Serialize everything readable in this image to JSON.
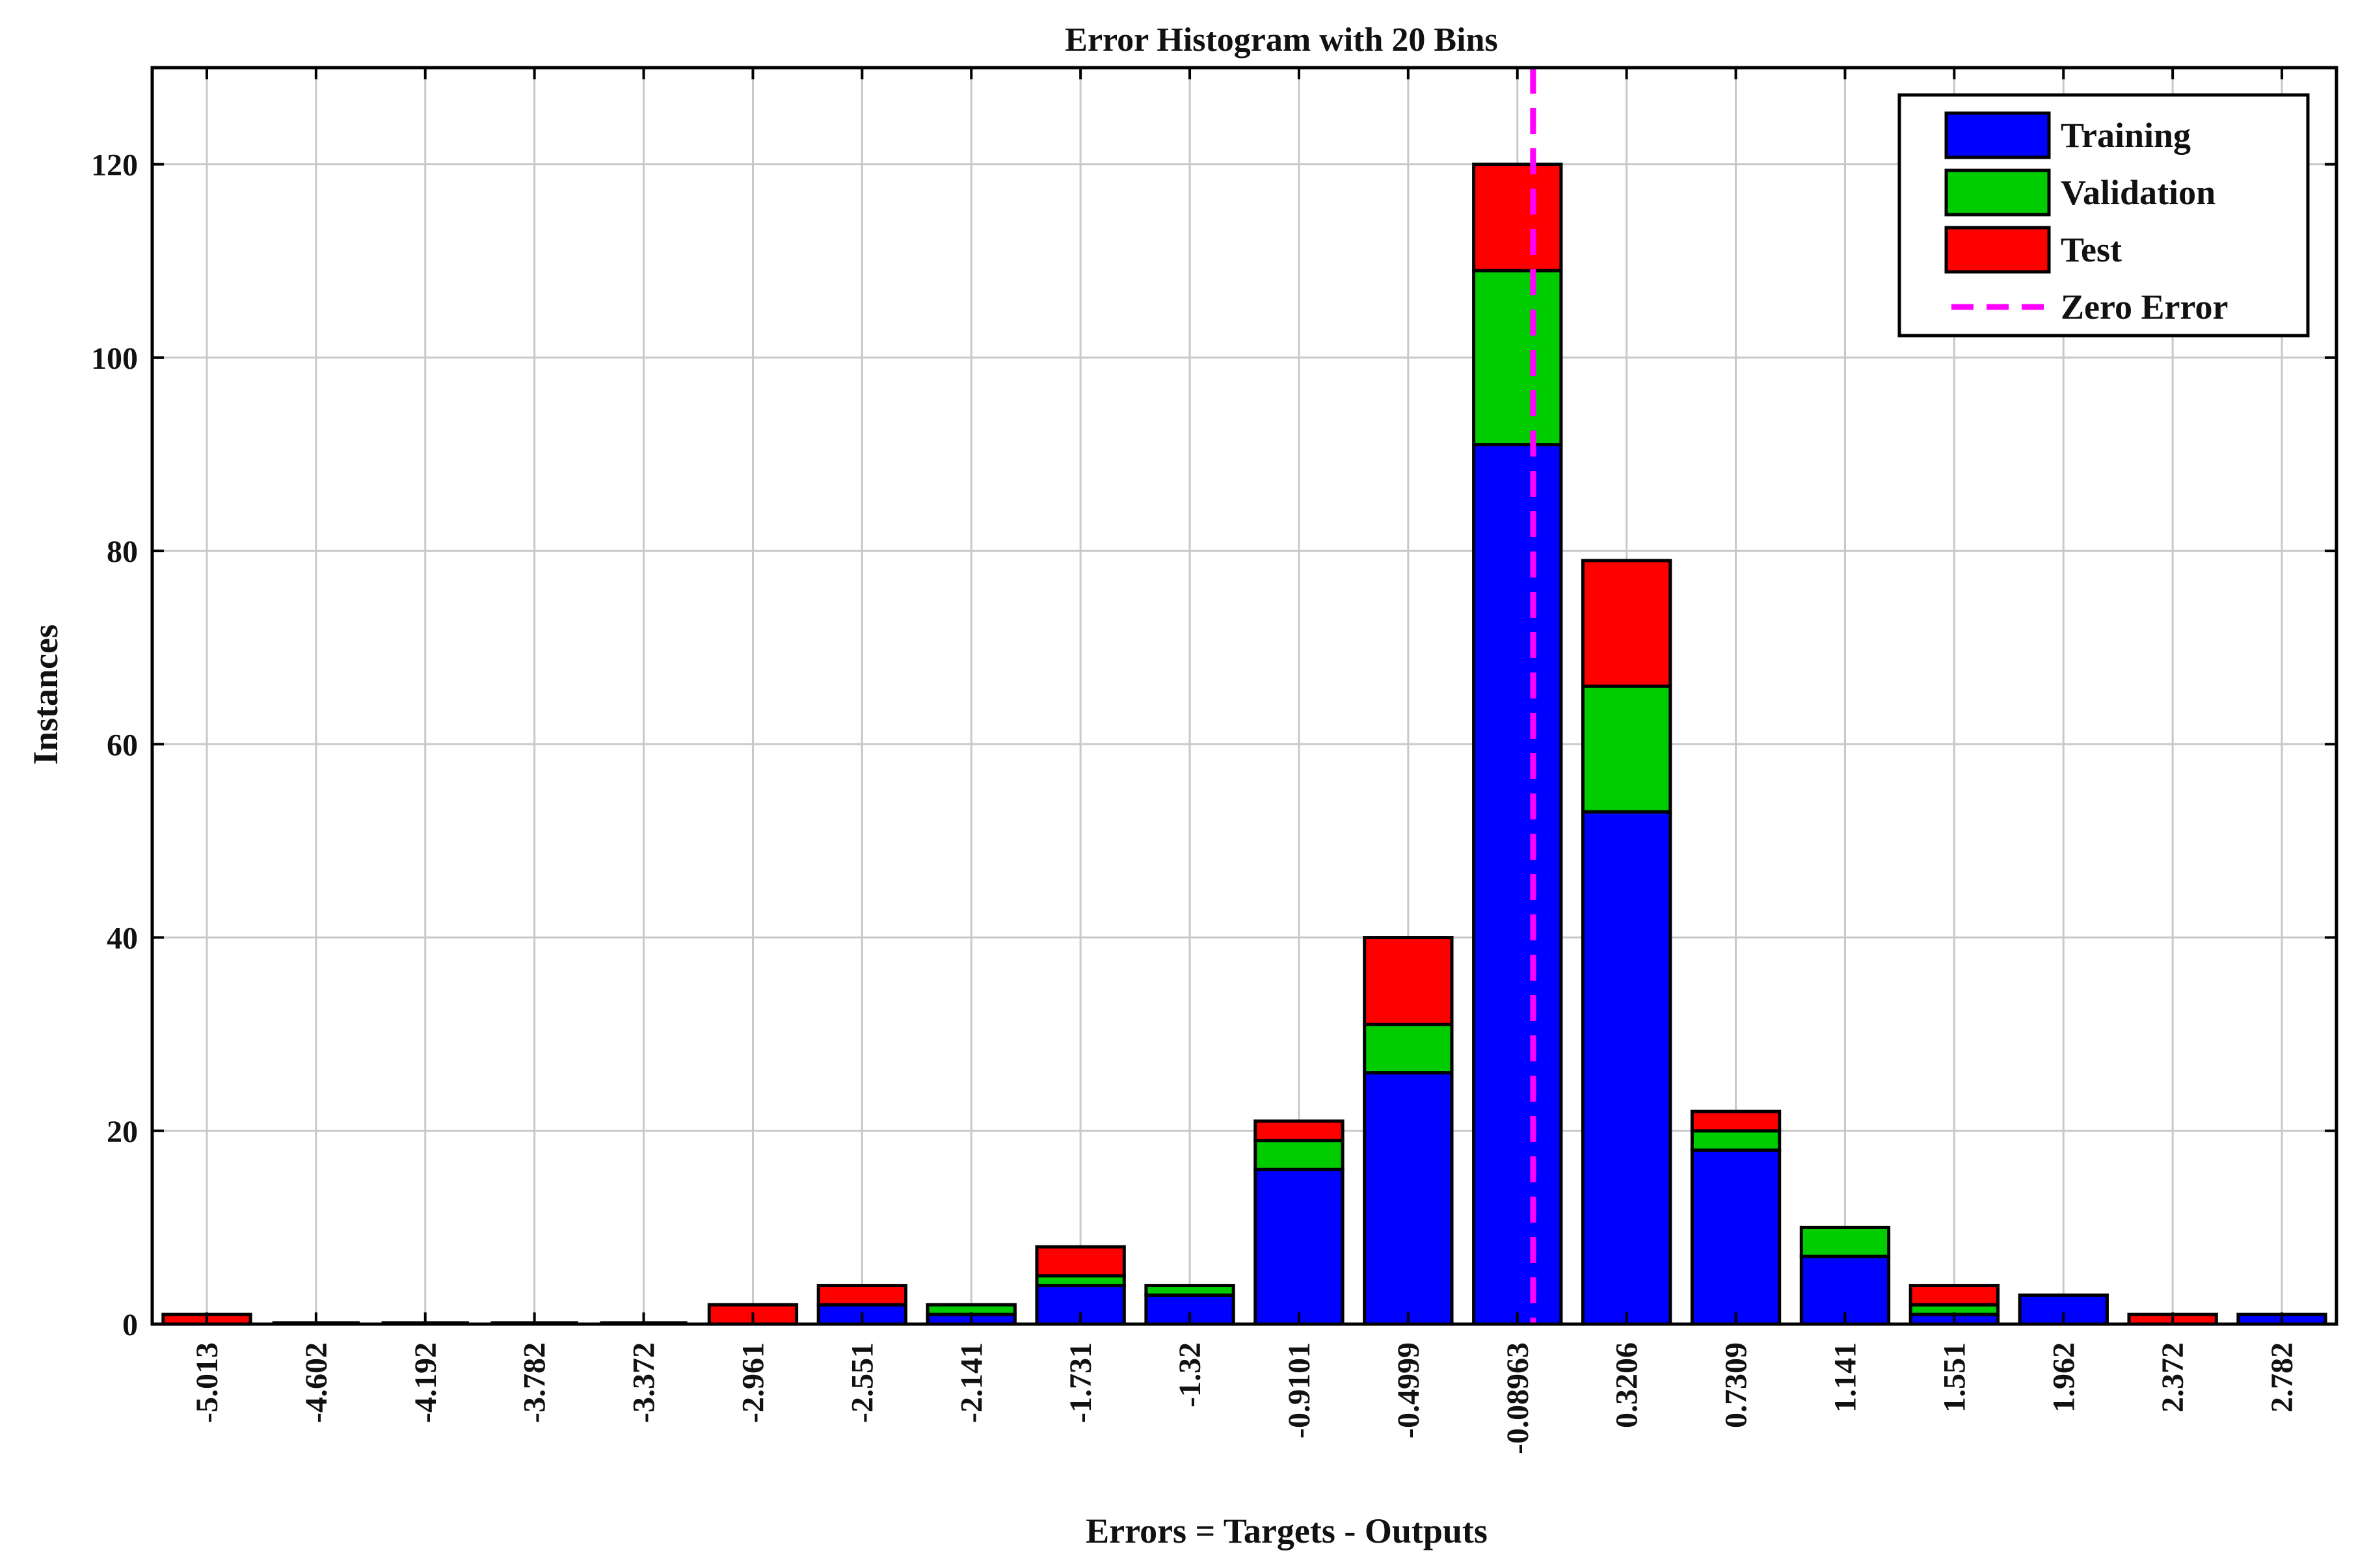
{
  "chart_data": {
    "type": "bar",
    "stacked": true,
    "title": "Error Histogram with 20 Bins",
    "xlabel": "Errors = Targets - Outputs",
    "ylabel": "Instances",
    "categories": [
      "-5.013",
      "-4.602",
      "-4.192",
      "-3.782",
      "-3.372",
      "-2.961",
      "-2.551",
      "-2.141",
      "-1.731",
      "-1.32",
      "-0.9101",
      "-0.4999",
      "-0.08963",
      "0.3206",
      "0.7309",
      "1.141",
      "1.551",
      "1.962",
      "2.372",
      "2.782"
    ],
    "category_values": [
      -5.013,
      -4.602,
      -4.192,
      -3.782,
      -3.372,
      -2.961,
      -2.551,
      -2.141,
      -1.731,
      -1.32,
      -0.9101,
      -0.4999,
      -0.08963,
      0.3206,
      0.7309,
      1.141,
      1.551,
      1.962,
      2.372,
      2.782
    ],
    "series": [
      {
        "name": "Training",
        "color": "#0000ff",
        "values": [
          0,
          0,
          0,
          0,
          0,
          0,
          2,
          1,
          4,
          3,
          16,
          26,
          91,
          53,
          18,
          7,
          1,
          3,
          0,
          1
        ]
      },
      {
        "name": "Validation",
        "color": "#00cc00",
        "values": [
          0,
          0,
          0,
          0,
          0,
          0,
          0,
          1,
          1,
          1,
          3,
          5,
          18,
          13,
          2,
          3,
          1,
          0,
          0,
          0
        ]
      },
      {
        "name": "Test",
        "color": "#ff0000",
        "values": [
          1,
          0,
          0,
          0,
          0,
          2,
          2,
          0,
          3,
          0,
          2,
          9,
          11,
          13,
          2,
          0,
          2,
          0,
          1,
          0
        ]
      }
    ],
    "zero_error": {
      "label": "Zero Error",
      "x": -0.0309,
      "color": "#ff00ff"
    },
    "ylim": [
      0,
      130
    ],
    "yticks": [
      0,
      20,
      40,
      60,
      80,
      100,
      120
    ],
    "grid": true,
    "legend_position": "top-right"
  }
}
